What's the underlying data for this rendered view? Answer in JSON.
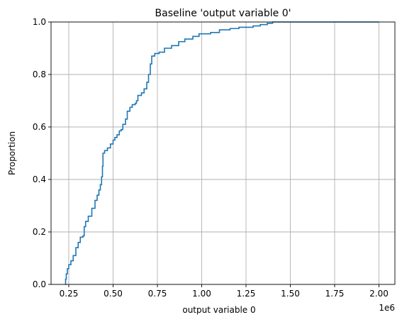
{
  "chart_data": {
    "type": "line",
    "subtype": "ecdf-step",
    "title": "Baseline 'output variable 0'",
    "xlabel": "output variable 0",
    "ylabel": "Proportion",
    "x_offset_label": "1e6",
    "x_scale_factor": 1000000,
    "xlim": [
      150000,
      2090000
    ],
    "ylim": [
      0,
      1
    ],
    "grid": true,
    "legend": "none",
    "x_ticks": [
      {
        "value": 250000,
        "label": "0.25"
      },
      {
        "value": 500000,
        "label": "0.50"
      },
      {
        "value": 750000,
        "label": "0.75"
      },
      {
        "value": 1000000,
        "label": "1.00"
      },
      {
        "value": 1250000,
        "label": "1.25"
      },
      {
        "value": 1500000,
        "label": "1.50"
      },
      {
        "value": 1750000,
        "label": "1.75"
      },
      {
        "value": 2000000,
        "label": "2.00"
      }
    ],
    "y_ticks": [
      {
        "value": 0.0,
        "label": "0.0"
      },
      {
        "value": 0.2,
        "label": "0.2"
      },
      {
        "value": 0.4,
        "label": "0.4"
      },
      {
        "value": 0.6,
        "label": "0.6"
      },
      {
        "value": 0.8,
        "label": "0.8"
      },
      {
        "value": 1.0,
        "label": "1.0"
      }
    ],
    "series": [
      {
        "color": "#1f77b4",
        "points": [
          [
            230000,
            0.0
          ],
          [
            232000,
            0.02
          ],
          [
            236000,
            0.04
          ],
          [
            242000,
            0.06
          ],
          [
            250000,
            0.075
          ],
          [
            262000,
            0.09
          ],
          [
            275000,
            0.11
          ],
          [
            290000,
            0.14
          ],
          [
            303000,
            0.16
          ],
          [
            315000,
            0.18
          ],
          [
            330000,
            0.185
          ],
          [
            337000,
            0.22
          ],
          [
            345000,
            0.24
          ],
          [
            360000,
            0.26
          ],
          [
            380000,
            0.29
          ],
          [
            398000,
            0.32
          ],
          [
            410000,
            0.34
          ],
          [
            420000,
            0.36
          ],
          [
            428000,
            0.38
          ],
          [
            435000,
            0.41
          ],
          [
            440000,
            0.45
          ],
          [
            443000,
            0.5
          ],
          [
            452000,
            0.51
          ],
          [
            468000,
            0.52
          ],
          [
            485000,
            0.535
          ],
          [
            500000,
            0.55
          ],
          [
            510000,
            0.56
          ],
          [
            522000,
            0.57
          ],
          [
            535000,
            0.585
          ],
          [
            545000,
            0.59
          ],
          [
            555000,
            0.61
          ],
          [
            570000,
            0.63
          ],
          [
            580000,
            0.66
          ],
          [
            595000,
            0.675
          ],
          [
            608000,
            0.685
          ],
          [
            625000,
            0.69
          ],
          [
            632000,
            0.7
          ],
          [
            640000,
            0.72
          ],
          [
            660000,
            0.73
          ],
          [
            675000,
            0.745
          ],
          [
            690000,
            0.77
          ],
          [
            700000,
            0.8
          ],
          [
            710000,
            0.84
          ],
          [
            718000,
            0.87
          ],
          [
            735000,
            0.88
          ],
          [
            760000,
            0.885
          ],
          [
            790000,
            0.9
          ],
          [
            830000,
            0.91
          ],
          [
            870000,
            0.925
          ],
          [
            905000,
            0.935
          ],
          [
            950000,
            0.945
          ],
          [
            985000,
            0.955
          ],
          [
            1050000,
            0.96
          ],
          [
            1100000,
            0.97
          ],
          [
            1160000,
            0.975
          ],
          [
            1210000,
            0.98
          ],
          [
            1290000,
            0.985
          ],
          [
            1330000,
            0.99
          ],
          [
            1370000,
            0.995
          ],
          [
            1400000,
            1.0
          ],
          [
            2000000,
            1.0
          ]
        ]
      }
    ]
  }
}
